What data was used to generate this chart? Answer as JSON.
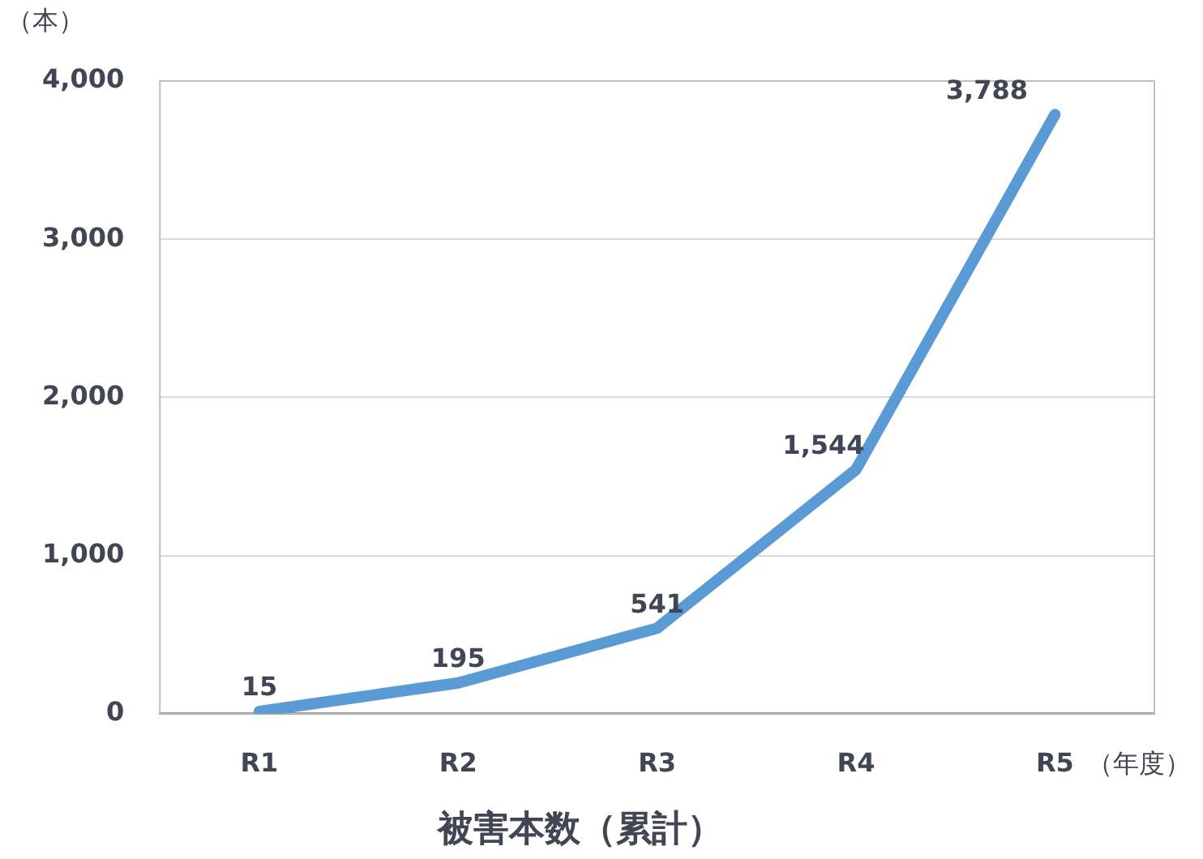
{
  "chart_data": {
    "type": "line",
    "title": "被害本数（累計）",
    "xlabel": "（年度）",
    "ylabel": "（本）",
    "categories": [
      "R1",
      "R2",
      "R3",
      "R4",
      "R5"
    ],
    "series": [
      {
        "color": "#5b9bd5",
        "values": [
          15,
          195,
          541,
          1544,
          3788
        ],
        "value_labels": [
          "15",
          "195",
          "541",
          "1,544",
          "3,788"
        ]
      }
    ],
    "ylim": [
      0,
      4000
    ],
    "yticks": [
      {
        "value": 0,
        "label": "0"
      },
      {
        "value": 1000,
        "label": "1,000"
      },
      {
        "value": 2000,
        "label": "2,000"
      },
      {
        "value": 3000,
        "label": "3,000"
      },
      {
        "value": 4000,
        "label": "4,000"
      }
    ],
    "grid": "y",
    "legend": false,
    "marker": "none",
    "line_style": "solid"
  }
}
